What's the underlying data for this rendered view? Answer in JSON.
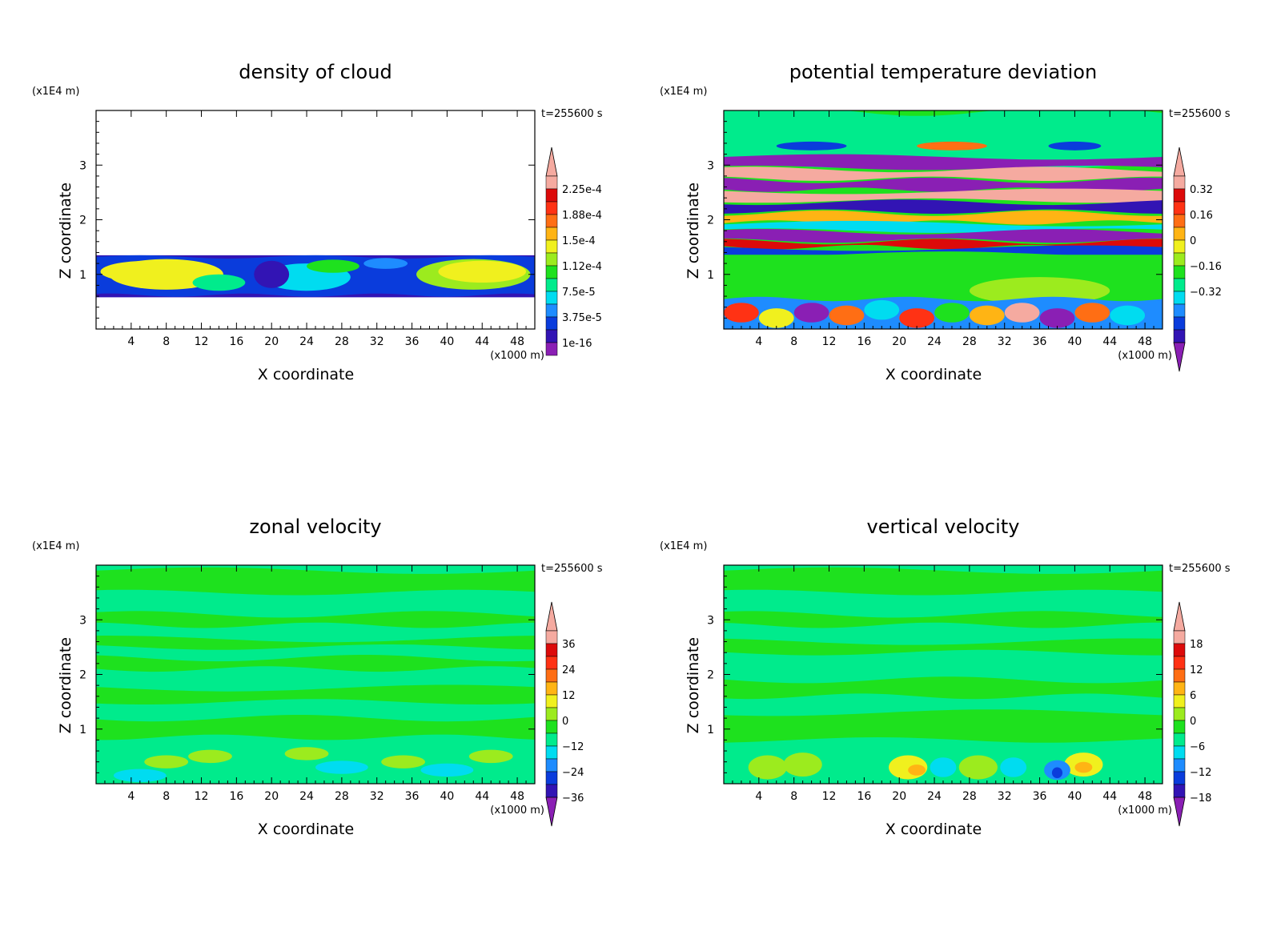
{
  "figure": {
    "time_label": "t=255600 s",
    "z_scale_label": "(x1E4 m)",
    "x_scale_label": "(x1000 m)"
  },
  "colors": {
    "palette": [
      "#8a1fb4",
      "#3214b4",
      "#0a3cdc",
      "#1e8cff",
      "#00dcf0",
      "#00eb8c",
      "#1ee11e",
      "#9ceb1e",
      "#f0f01e",
      "#ffb414",
      "#ff6e14",
      "#ff3214",
      "#dc0a0a",
      "#f5aaa0"
    ]
  },
  "chart_data": [
    {
      "type": "heatmap",
      "title": "density of cloud",
      "xlabel": "X coordinate",
      "ylabel": "Z coordinate",
      "x_ticks": [
        4,
        8,
        12,
        16,
        20,
        24,
        28,
        32,
        36,
        40,
        44,
        48
      ],
      "y_ticks": [
        1,
        2,
        3
      ],
      "xlim": [
        0,
        50
      ],
      "ylim": [
        0,
        4
      ],
      "colorbar": {
        "labels": [
          "2.25e-4",
          "1.88e-4",
          "1.5e-4",
          "1.12e-4",
          "7.5e-5",
          "3.75e-5",
          "1e-16"
        ],
        "min_arrow": false
      }
    },
    {
      "type": "heatmap",
      "title": "potential temperature deviation",
      "xlabel": "X coordinate",
      "ylabel": "Z coordinate",
      "x_ticks": [
        4,
        8,
        12,
        16,
        20,
        24,
        28,
        32,
        36,
        40,
        44,
        48
      ],
      "y_ticks": [
        1,
        2,
        3
      ],
      "xlim": [
        0,
        50
      ],
      "ylim": [
        0,
        4
      ],
      "colorbar": {
        "labels": [
          "0.32",
          "0.16",
          "0",
          "−0.16",
          "−0.32"
        ],
        "min_arrow": true
      }
    },
    {
      "type": "heatmap",
      "title": "zonal velocity",
      "xlabel": "X coordinate",
      "ylabel": "Z coordinate",
      "x_ticks": [
        4,
        8,
        12,
        16,
        20,
        24,
        28,
        32,
        36,
        40,
        44,
        48
      ],
      "y_ticks": [
        1,
        2,
        3
      ],
      "xlim": [
        0,
        50
      ],
      "ylim": [
        0,
        4
      ],
      "colorbar": {
        "labels": [
          "36",
          "24",
          "12",
          "0",
          "−12",
          "−24",
          "−36"
        ],
        "min_arrow": true
      }
    },
    {
      "type": "heatmap",
      "title": "vertical velocity",
      "xlabel": "X coordinate",
      "ylabel": "Z coordinate",
      "x_ticks": [
        4,
        8,
        12,
        16,
        20,
        24,
        28,
        32,
        36,
        40,
        44,
        48
      ],
      "y_ticks": [
        1,
        2,
        3
      ],
      "xlim": [
        0,
        50
      ],
      "ylim": [
        0,
        4
      ],
      "colorbar": {
        "labels": [
          "18",
          "12",
          "6",
          "0",
          "−6",
          "−12",
          "−18"
        ],
        "min_arrow": true
      }
    }
  ]
}
